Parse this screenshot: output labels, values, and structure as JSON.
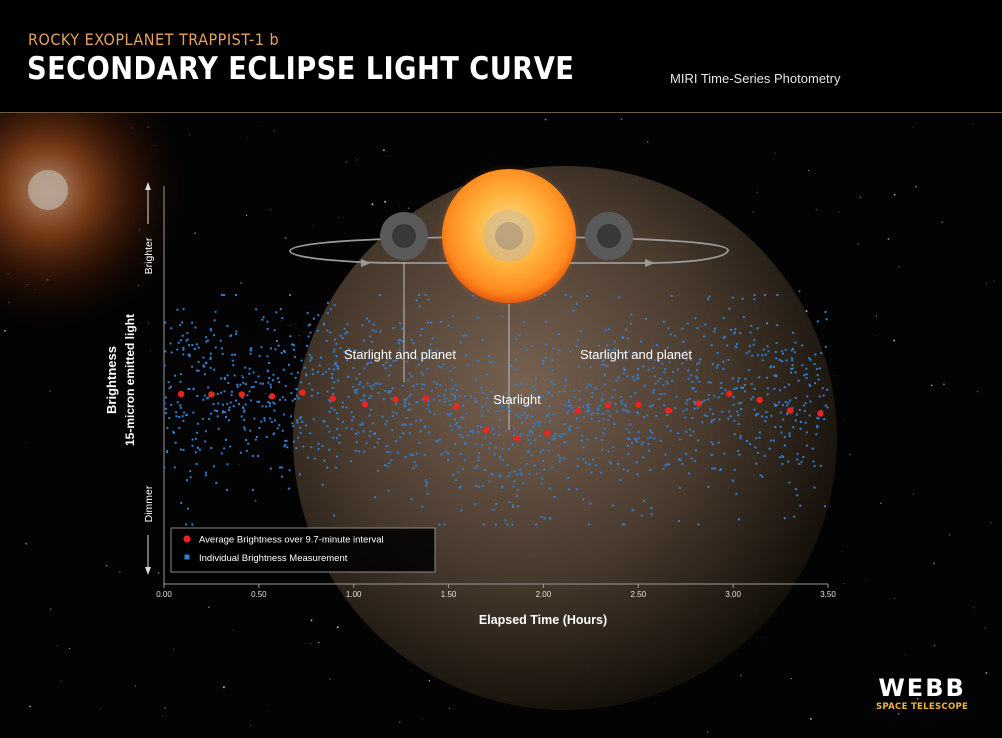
{
  "header": {
    "super_title": "ROCKY EXOPLANET TRAPPIST-1 b",
    "title": "SECONDARY ECLIPSE LIGHT CURVE",
    "instrument": "MIRI Time-Series Photometry"
  },
  "annotations": {
    "left": "Starlight and planet",
    "center": "Starlight",
    "right": "Starlight and planet"
  },
  "axis": {
    "y_title": "Brightness",
    "y_subtitle": "15-micron emitted light",
    "y_top": "Brighter",
    "y_bottom": "Dimmer"
  },
  "legend": {
    "average": "Average Brightness over 9.7-minute interval",
    "individual": "Individual Brightness Measurement"
  },
  "logo": {
    "word": "WEBB",
    "sub": "SPACE TELESCOPE"
  },
  "colors": {
    "average": "#e8251f",
    "individual": "#2f7fd1",
    "accent": "#e8a25a"
  },
  "chart_data": {
    "type": "scatter",
    "xlabel": "Elapsed Time (Hours)",
    "ylabel": "Brightness",
    "xlim": [
      0,
      3.5
    ],
    "x_ticks": [
      "0.00",
      "0.50",
      "1.00",
      "1.50",
      "2.00",
      "2.50",
      "3.00",
      "3.50"
    ],
    "y_scale": "relative (no numeric ticks)",
    "grid": false,
    "legend_position": "bottom-left",
    "series": [
      {
        "name": "Average Brightness over 9.7-minute interval",
        "x": [
          0.09,
          0.25,
          0.41,
          0.57,
          0.73,
          0.89,
          1.06,
          1.22,
          1.38,
          1.54,
          1.7,
          1.86,
          2.02,
          2.18,
          2.34,
          2.5,
          2.66,
          2.82,
          2.98,
          3.14,
          3.3,
          3.46
        ],
        "y": [
          0.4,
          0.39,
          0.39,
          0.35,
          0.43,
          0.3,
          0.17,
          0.28,
          0.3,
          0.12,
          -0.4,
          -0.58,
          -0.47,
          0.03,
          0.15,
          0.16,
          0.03,
          0.19,
          0.41,
          0.27,
          0.03,
          -0.03
        ]
      },
      {
        "name": "Individual Brightness Measurement",
        "count": 1500,
        "x_range": [
          0,
          3.5
        ],
        "spread": "scatter about the averages, roughly ±2.5 relative units"
      }
    ]
  }
}
